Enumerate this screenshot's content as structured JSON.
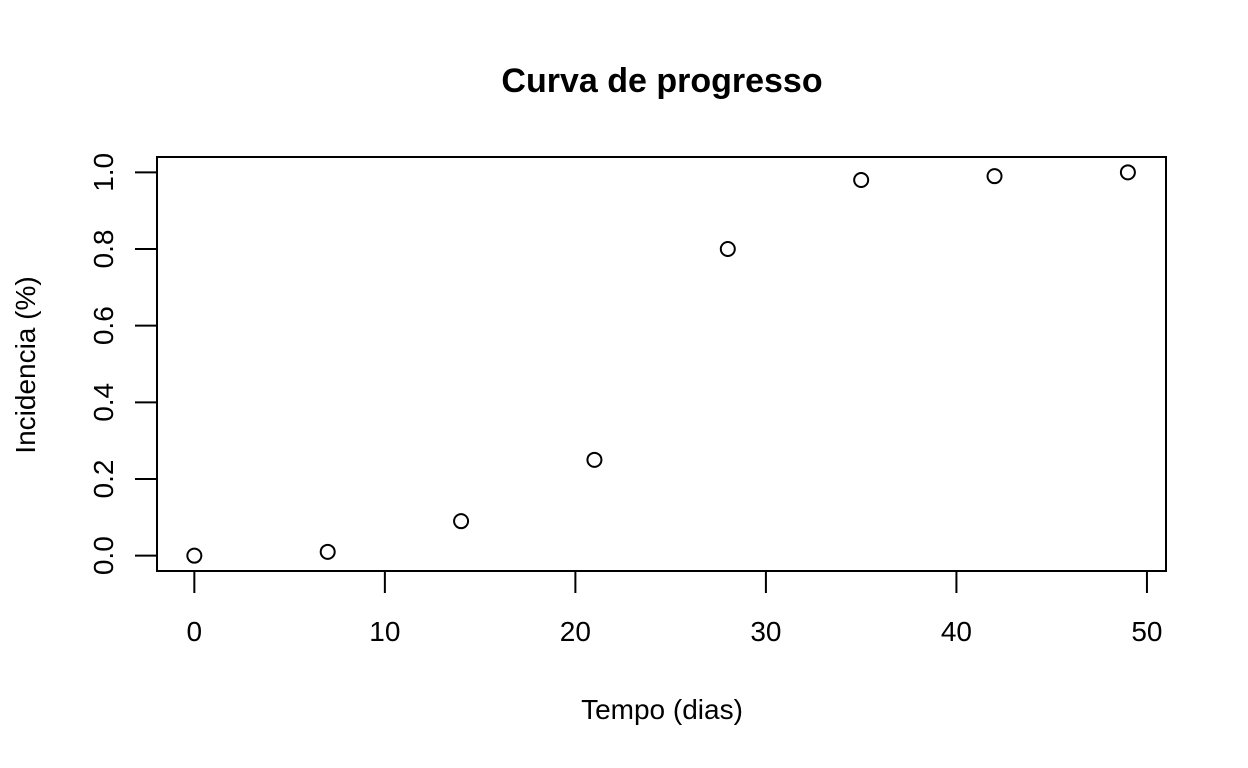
{
  "chart_data": {
    "type": "scatter",
    "title": "Curva de progresso",
    "xlabel": "Tempo (dias)",
    "ylabel": "Incidencia (%)",
    "x": [
      0,
      7,
      14,
      21,
      28,
      35,
      42,
      49
    ],
    "y": [
      0.0,
      0.01,
      0.09,
      0.25,
      0.8,
      0.98,
      0.99,
      1.0
    ],
    "xticks": [
      0,
      10,
      20,
      30,
      40,
      50
    ],
    "xtick_labels": [
      "0",
      "10",
      "20",
      "30",
      "40",
      "50"
    ],
    "yticks": [
      0.0,
      0.2,
      0.4,
      0.6,
      0.8,
      1.0
    ],
    "ytick_labels": [
      "0.0",
      "0.2",
      "0.4",
      "0.6",
      "0.8",
      "1.0"
    ],
    "xlim": [
      -1.96,
      51
    ],
    "ylim": [
      -0.04,
      1.04
    ],
    "grid": false,
    "legend": "none",
    "marker": "open-circle"
  }
}
